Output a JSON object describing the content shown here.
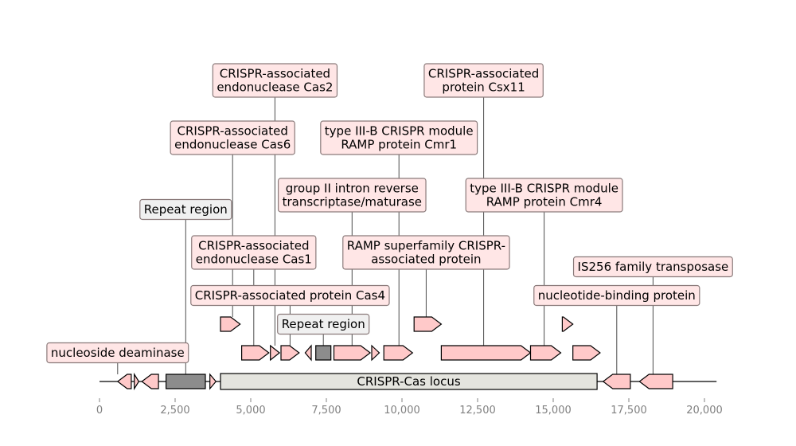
{
  "colors": {
    "gene": "#ffc9c9",
    "repeat": "#8c8c8c",
    "locus": "#e4e4de",
    "label_gene_bg": "#ffe6e6",
    "label_repeat_bg": "#f0f0f0",
    "label_border": "#8a7a7a",
    "axis_tick": "#808080"
  },
  "axis": {
    "min": 0,
    "max": 20500,
    "ticks": [
      {
        "value": 0,
        "label": "0"
      },
      {
        "value": 2500,
        "label": "2,500"
      },
      {
        "value": 5000,
        "label": "5,000"
      },
      {
        "value": 7500,
        "label": "7,500"
      },
      {
        "value": 10000,
        "label": "10,000"
      },
      {
        "value": 12500,
        "label": "12,500"
      },
      {
        "value": 15000,
        "label": "15,000"
      },
      {
        "value": 17500,
        "label": "17,500"
      },
      {
        "value": 20000,
        "label": "20,000"
      }
    ]
  },
  "sequence": {
    "start": 0,
    "end": 20400
  },
  "locus": {
    "label": "CRISPR-Cas locus",
    "start": 4000,
    "end": 16450
  },
  "features": [
    {
      "type": "gene",
      "start": 600,
      "end": 1050,
      "strand": -1,
      "level": 0
    },
    {
      "type": "gene",
      "start": 1150,
      "end": 1300,
      "strand": 1,
      "level": 0
    },
    {
      "type": "gene",
      "start": 1400,
      "end": 1950,
      "strand": -1,
      "level": 0
    },
    {
      "type": "repeat",
      "start": 2200,
      "end": 3500,
      "strand": 0,
      "level": 0
    },
    {
      "type": "gene",
      "start": 3650,
      "end": 3850,
      "strand": 1,
      "level": 0
    },
    {
      "type": "gene",
      "start": 4000,
      "end": 4650,
      "strand": 1,
      "level": 2
    },
    {
      "type": "gene",
      "start": 4700,
      "end": 5600,
      "strand": 1,
      "level": 1
    },
    {
      "type": "gene",
      "start": 5650,
      "end": 5950,
      "strand": 1,
      "level": 1
    },
    {
      "type": "gene",
      "start": 6000,
      "end": 6600,
      "strand": 1,
      "level": 1
    },
    {
      "type": "gene",
      "start": 6800,
      "end": 7000,
      "strand": -1,
      "level": 1
    },
    {
      "type": "repeat",
      "start": 7150,
      "end": 7650,
      "strand": 0,
      "level": 1
    },
    {
      "type": "gene",
      "start": 7750,
      "end": 8950,
      "strand": 1,
      "level": 1
    },
    {
      "type": "gene",
      "start": 9000,
      "end": 9250,
      "strand": 1,
      "level": 1
    },
    {
      "type": "gene",
      "start": 9400,
      "end": 10350,
      "strand": 1,
      "level": 1
    },
    {
      "type": "gene",
      "start": 10400,
      "end": 11300,
      "strand": 1,
      "level": 2
    },
    {
      "type": "gene",
      "start": 11300,
      "end": 14250,
      "strand": 1,
      "level": 1
    },
    {
      "type": "gene",
      "start": 14250,
      "end": 15250,
      "strand": 1,
      "level": 1
    },
    {
      "type": "gene",
      "start": 15300,
      "end": 15650,
      "strand": 1,
      "level": 2
    },
    {
      "type": "gene",
      "start": 15650,
      "end": 16550,
      "strand": 1,
      "level": 1
    },
    {
      "type": "gene",
      "start": 16650,
      "end": 17550,
      "strand": -1,
      "level": 0
    },
    {
      "type": "gene",
      "start": 17850,
      "end": 18950,
      "strand": -1,
      "level": 0
    }
  ],
  "labels": [
    {
      "text": [
        "nucleoside deaminase"
      ],
      "anchor": 600,
      "row": 0,
      "kind": "gene"
    },
    {
      "text": [
        "Repeat region"
      ],
      "anchor": 2850,
      "row": 5,
      "kind": "repeat"
    },
    {
      "text": [
        "CRISPR-associated",
        "endonuclease Cas1"
      ],
      "anchor": 5100,
      "row": 3.5,
      "kind": "gene"
    },
    {
      "text": [
        "CRISPR-associated protein Cas4"
      ],
      "anchor": 6300,
      "row": 2,
      "kind": "gene"
    },
    {
      "text": [
        "CRISPR-associated",
        "endonuclease Cas6"
      ],
      "anchor": 4400,
      "row": 7.5,
      "kind": "gene"
    },
    {
      "text": [
        "CRISPR-associated",
        "endonuclease Cas2"
      ],
      "anchor": 5800,
      "row": 9.5,
      "kind": "gene"
    },
    {
      "text": [
        "Repeat region"
      ],
      "anchor": 7400,
      "row": 1,
      "kind": "repeat"
    },
    {
      "text": [
        "group II intron reverse",
        "transcriptase/maturase"
      ],
      "anchor": 8350,
      "row": 5.5,
      "kind": "gene"
    },
    {
      "text": [
        "type III-B CRISPR module",
        "RAMP protein Cmr1"
      ],
      "anchor": 9900,
      "row": 7.5,
      "kind": "gene"
    },
    {
      "text": [
        "RAMP superfamily CRISPR-",
        "associated protein"
      ],
      "anchor": 10800,
      "row": 3.5,
      "kind": "gene"
    },
    {
      "text": [
        "CRISPR-associated",
        "protein Csx11"
      ],
      "anchor": 12700,
      "row": 9.5,
      "kind": "gene"
    },
    {
      "text": [
        "type III-B CRISPR module",
        "RAMP protein Cmr4"
      ],
      "anchor": 14700,
      "row": 5.5,
      "kind": "gene"
    },
    {
      "text": [
        "nucleotide-binding protein"
      ],
      "anchor": 17100,
      "row": 2,
      "kind": "gene"
    },
    {
      "text": [
        "IS256 family transposase"
      ],
      "anchor": 18300,
      "row": 3,
      "kind": "gene"
    }
  ]
}
